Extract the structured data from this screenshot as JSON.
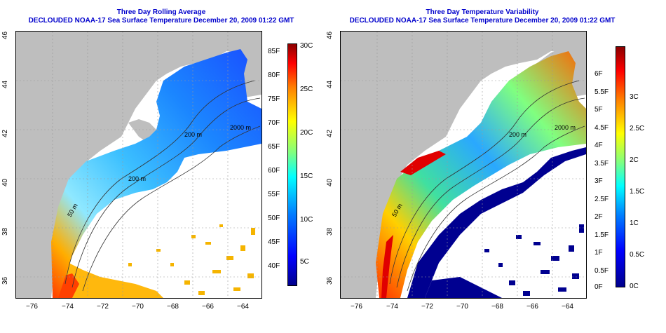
{
  "left_map": {
    "title": "Three Day Rolling Average",
    "subtitle": "DECLOUDED NOAA-17 Sea Surface Temperature December 20, 2009 01:22 GMT",
    "contours": [
      "200 m",
      "200 m",
      "2000 m",
      "50 m"
    ],
    "colorbar": {
      "f_labels": [
        "85F",
        "80F",
        "75F",
        "70F",
        "65F",
        "60F",
        "55F",
        "50F",
        "45F",
        "40F"
      ],
      "c_labels": [
        "30C",
        "25C",
        "20C",
        "15C",
        "10C",
        "5C"
      ]
    }
  },
  "right_map": {
    "title": "Three Day Temperature Variability",
    "subtitle": "DECLOUDED NOAA-17 Sea Surface Temperature December 20, 2009 01:22 GMT",
    "contours": [
      "200 m",
      "2000 m",
      "50 m"
    ],
    "colorbar": {
      "f_labels": [
        "6F",
        "5.5F",
        "5F",
        "4.5F",
        "4F",
        "3.5F",
        "3F",
        "2.5F",
        "2F",
        "1.5F",
        "1F",
        "0.5F",
        "0F"
      ],
      "c_labels": [
        "3C",
        "2.5C",
        "2C",
        "1.5C",
        "1C",
        "0.5C",
        "0C"
      ]
    }
  },
  "axes": {
    "x_ticks": [
      "−76",
      "−74",
      "−72",
      "−70",
      "−68",
      "−66",
      "−64"
    ],
    "y_ticks": [
      "46",
      "44",
      "42",
      "40",
      "38",
      "36"
    ]
  },
  "colors": {
    "title": "#0000cc",
    "land": "#bebebe",
    "ocean": "#ffffff"
  }
}
